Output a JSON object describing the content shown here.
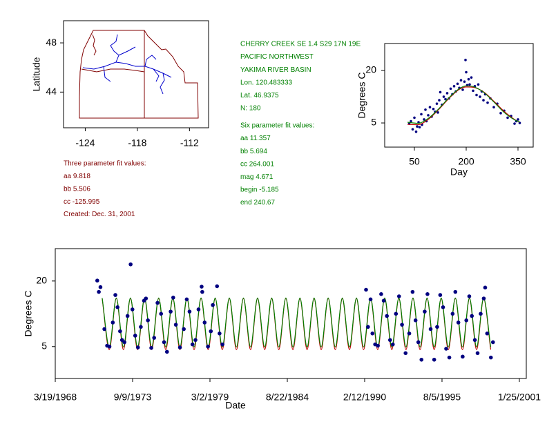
{
  "station": {
    "lines": [
      "CHERRY CREEK SE 1.4 S29 17N 19E",
      "PACIFIC NORTHWEST",
      "YAKIMA RIVER BASIN",
      "Lon. 120.483333",
      "Lat. 46.9375",
      "N: 180"
    ],
    "six_parameter": [
      "Six parameter fit values:",
      "aa 11.357",
      "bb 5.694",
      "cc 264.001",
      "mag 4.671",
      "begin -5.185",
      "end 240.67"
    ]
  },
  "three_parameter": [
    "Three parameter fit values:",
    "aa 9.818",
    "bb 5.506",
    "cc -125.995",
    "Created:   Dec. 31, 2001"
  ],
  "chart_data": [
    {
      "type": "map",
      "y_label": "Latitude",
      "xlim": [
        -126.5,
        -109.8
      ],
      "xticks": [
        -124,
        -118,
        -112
      ],
      "ylim": [
        41.1,
        49.8
      ],
      "yticks": [
        48,
        44
      ]
    },
    {
      "type": "seasonal",
      "x_label": "Day",
      "y_label": "Degrees C",
      "xlim": [
        -36,
        394
      ],
      "xticks": [
        50,
        200,
        350
      ],
      "ylim": [
        -1.9,
        27.7
      ],
      "yticks": [
        20,
        5
      ],
      "series": [
        {
          "type": "scatter",
          "color": "#000080",
          "x": [
            35,
            40,
            45,
            50,
            55,
            58,
            62,
            65,
            70,
            72,
            78,
            82,
            85,
            90,
            95,
            100,
            105,
            110,
            115,
            118,
            122,
            125,
            130,
            135,
            140,
            145,
            150,
            155,
            160,
            165,
            170,
            175,
            180,
            185,
            190,
            195,
            198,
            200,
            203,
            207,
            210,
            215,
            220,
            225,
            230,
            235,
            240,
            245,
            250,
            255,
            262,
            270,
            280,
            290,
            300,
            310,
            320,
            330,
            340,
            345,
            350,
            355
          ],
          "values": [
            4.8,
            5.5,
            3.2,
            6.5,
            2.5,
            4.0,
            5.2,
            3.8,
            7.5,
            4.5,
            6.0,
            8.8,
            5.5,
            7.2,
            9.5,
            6.8,
            9.0,
            8.2,
            10.5,
            8.0,
            11.5,
            13.8,
            10.2,
            12.5,
            11.8,
            13.5,
            12.0,
            14.8,
            13.2,
            15.5,
            14.0,
            16.2,
            15.0,
            17.2,
            14.5,
            16.8,
            23.0,
            19.5,
            15.8,
            17.5,
            16.0,
            18.0,
            14.2,
            15.5,
            13.0,
            16.0,
            12.5,
            14.0,
            11.5,
            13.2,
            10.8,
            12.0,
            9.5,
            10.5,
            7.8,
            8.5,
            6.5,
            7.0,
            4.8,
            5.5,
            6.0,
            5.0
          ]
        },
        {
          "type": "line",
          "color": "#c00000",
          "x": [
            30,
            60,
            90,
            120,
            150,
            180,
            200,
            220,
            250,
            280,
            310,
            340,
            355
          ],
          "values": [
            4.6,
            4.5,
            6.0,
            8.8,
            12.0,
            14.6,
            15.3,
            15.2,
            13.9,
            11.2,
            8.3,
            6.0,
            5.2
          ]
        },
        {
          "type": "line",
          "color": "#008000",
          "x": [
            30,
            60,
            90,
            120,
            150,
            180,
            200,
            220,
            250,
            280,
            310,
            340,
            355
          ],
          "values": [
            5.2,
            4.9,
            6.3,
            9.0,
            12.2,
            14.8,
            15.6,
            15.4,
            13.8,
            11.0,
            8.0,
            5.9,
            5.3
          ]
        }
      ]
    },
    {
      "type": "timeseries",
      "x_label": "Date",
      "y_label": "Degrees C",
      "xlim": [
        "1968-03-19",
        "2001-07-23"
      ],
      "xticks": [
        {
          "value": "1968-03-19",
          "label": "3/19/1968"
        },
        {
          "value": "1973-09-09",
          "label": "9/9/1973"
        },
        {
          "value": "1979-03-02",
          "label": "3/2/1979"
        },
        {
          "value": "1984-08-22",
          "label": "8/22/1984"
        },
        {
          "value": "1990-02-12",
          "label": "2/12/1990"
        },
        {
          "value": "1995-08-05",
          "label": "8/5/1995"
        },
        {
          "value": "2001-01-25",
          "label": "1/25/2001"
        }
      ],
      "ylim": [
        -2.3,
        27.4
      ],
      "yticks": [
        20,
        5
      ],
      "series": [
        {
          "type": "line",
          "color": "#c00000",
          "x": [
            "1971-07-15",
            "1972-01-15",
            "1972-07-15",
            "1973-01-15",
            "1973-07-15",
            "1974-01-15",
            "1974-07-15",
            "1975-01-15",
            "1975-07-15",
            "1976-01-15",
            "1976-07-15",
            "1977-01-15",
            "1977-07-15",
            "1978-01-15",
            "1978-07-15",
            "1979-01-15",
            "1979-07-15",
            "1980-01-15",
            "1980-07-15",
            "1981-01-15",
            "1981-07-15",
            "1982-01-15",
            "1982-07-15",
            "1983-01-15",
            "1983-07-15",
            "1984-01-15",
            "1984-07-15",
            "1985-01-15",
            "1985-07-15",
            "1986-01-15",
            "1986-07-15",
            "1987-01-15",
            "1987-07-15",
            "1988-01-15",
            "1988-07-15",
            "1989-01-15",
            "1989-07-15",
            "1990-01-15",
            "1990-07-15",
            "1991-01-15",
            "1991-07-15",
            "1992-01-15",
            "1992-07-15",
            "1993-01-15",
            "1993-07-15",
            "1994-01-15",
            "1994-07-15",
            "1995-01-15",
            "1995-07-15",
            "1996-01-15",
            "1996-07-15",
            "1997-01-15",
            "1997-07-15",
            "1998-01-15",
            "1998-07-15",
            "1999-01-15"
          ],
          "values": [
            16.0,
            4.3,
            16.0,
            4.3,
            16.0,
            4.3,
            16.0,
            4.3,
            16.0,
            4.3,
            16.0,
            4.3,
            16.0,
            4.3,
            16.0,
            4.3,
            16.0,
            4.3,
            16.0,
            4.3,
            16.0,
            4.3,
            16.0,
            4.3,
            16.0,
            4.3,
            16.0,
            4.3,
            16.0,
            4.3,
            16.0,
            4.3,
            16.0,
            4.3,
            16.0,
            4.3,
            16.0,
            4.3,
            16.0,
            4.3,
            16.0,
            4.3,
            16.0,
            4.3,
            16.0,
            4.3,
            16.0,
            4.3,
            16.0,
            4.3,
            16.0,
            4.3,
            16.0,
            4.3,
            16.0,
            4.3
          ]
        },
        {
          "type": "line",
          "color": "#008000",
          "x": [
            "1971-07-15",
            "1972-01-15",
            "1972-07-15",
            "1973-01-15",
            "1973-07-15",
            "1974-01-15",
            "1974-07-15",
            "1975-01-15",
            "1975-07-15",
            "1976-01-15",
            "1976-07-15",
            "1977-01-15",
            "1977-07-15",
            "1978-01-15",
            "1978-07-15",
            "1979-01-15",
            "1979-07-15",
            "1980-01-15",
            "1980-07-15",
            "1981-01-15",
            "1981-07-15",
            "1982-01-15",
            "1982-07-15",
            "1983-01-15",
            "1983-07-15",
            "1984-01-15",
            "1984-07-15",
            "1985-01-15",
            "1985-07-15",
            "1986-01-15",
            "1986-07-15",
            "1987-01-15",
            "1987-07-15",
            "1988-01-15",
            "1988-07-15",
            "1989-01-15",
            "1989-07-15",
            "1990-01-15",
            "1990-07-15",
            "1991-01-15",
            "1991-07-15",
            "1992-01-15",
            "1992-07-15",
            "1993-01-15",
            "1993-07-15",
            "1994-01-15",
            "1994-07-15",
            "1995-01-15",
            "1995-07-15",
            "1996-01-15",
            "1996-07-15",
            "1997-01-15",
            "1997-07-15",
            "1998-01-15",
            "1998-07-15",
            "1999-01-15"
          ],
          "values": [
            16.1,
            4.9,
            16.1,
            4.9,
            16.1,
            4.9,
            16.1,
            4.9,
            16.1,
            4.9,
            16.1,
            4.9,
            16.1,
            4.9,
            16.1,
            4.9,
            16.1,
            4.9,
            16.1,
            4.9,
            16.1,
            4.9,
            16.1,
            4.9,
            16.1,
            4.9,
            16.1,
            4.9,
            16.1,
            4.9,
            16.1,
            4.9,
            16.1,
            4.9,
            16.1,
            4.9,
            16.1,
            4.9,
            16.1,
            4.9,
            16.1,
            4.9,
            16.1,
            4.9,
            16.1,
            4.9,
            16.1,
            4.9,
            16.1,
            4.9,
            16.1,
            4.9,
            16.1,
            4.9,
            16.1,
            4.9
          ]
        },
        {
          "type": "scatter",
          "color": "#000080",
          "x": [
            "1971-03-10",
            "1971-04-20",
            "1971-06-01",
            "1971-09-10",
            "1971-11-20",
            "1972-01-20",
            "1972-04-15",
            "1972-06-20",
            "1972-08-15",
            "1972-10-20",
            "1972-12-10",
            "1973-02-10",
            "1973-05-01",
            "1973-07-20",
            "1973-09-05",
            "1973-11-15",
            "1974-01-25",
            "1974-04-10",
            "1974-07-01",
            "1974-08-20",
            "1974-10-10",
            "1975-01-05",
            "1975-03-20",
            "1975-06-15",
            "1975-09-15",
            "1975-12-01",
            "1976-02-15",
            "1976-05-20",
            "1976-07-25",
            "1976-10-01",
            "1977-01-15",
            "1977-04-25",
            "1977-07-10",
            "1977-09-20",
            "1977-12-05",
            "1978-02-20",
            "1978-05-10",
            "1978-07-30",
            "1978-08-15",
            "1978-10-15",
            "1979-01-10",
            "1979-03-25",
            "1979-05-15",
            "1979-09-01",
            "1979-11-05",
            "1980-01-20",
            "1990-03-20",
            "1990-05-10",
            "1990-07-15",
            "1990-09-01",
            "1990-11-10",
            "1991-01-20",
            "1991-04-15",
            "1991-06-20",
            "1991-09-10",
            "1991-12-01",
            "1992-02-10",
            "1992-05-01",
            "1992-07-20",
            "1992-10-05",
            "1993-01-05",
            "1993-04-10",
            "1993-07-05",
            "1993-09-20",
            "1993-12-01",
            "1994-02-20",
            "1994-05-15",
            "1994-07-25",
            "1994-10-15",
            "1995-01-15",
            "1995-04-01",
            "1995-06-20",
            "1995-09-01",
            "1995-11-20",
            "1996-02-10",
            "1996-05-05",
            "1996-07-15",
            "1996-10-01",
            "1997-01-20",
            "1997-04-25",
            "1997-07-10",
            "1997-09-15",
            "1997-12-01",
            "1998-02-10",
            "1998-05-01",
            "1998-07-20",
            "1998-08-25",
            "1998-10-15",
            "1999-01-20",
            "1999-03-15"
          ],
          "values": [
            20.1,
            17.5,
            18.6,
            9.0,
            5.2,
            5.0,
            10.5,
            16.8,
            14.0,
            8.5,
            6.5,
            6.0,
            12.0,
            23.8,
            13.5,
            7.5,
            4.8,
            9.5,
            15.5,
            16.0,
            11.0,
            4.7,
            7.0,
            15.0,
            12.5,
            6.0,
            3.8,
            13.0,
            16.2,
            10.0,
            4.8,
            9.0,
            15.8,
            13.0,
            5.5,
            6.5,
            13.5,
            18.7,
            17.5,
            10.5,
            5.0,
            8.5,
            14.5,
            18.8,
            8.0,
            5.5,
            18.0,
            9.5,
            15.8,
            8.0,
            5.5,
            5.2,
            17.0,
            15.5,
            12.0,
            6.5,
            5.5,
            12.5,
            16.5,
            10.0,
            3.5,
            8.0,
            17.5,
            11.0,
            6.0,
            2.0,
            13.0,
            17.0,
            9.0,
            2.0,
            9.5,
            16.8,
            14.0,
            4.5,
            2.5,
            12.5,
            17.5,
            10.5,
            2.7,
            11.0,
            16.5,
            12.0,
            6.5,
            3.5,
            12.5,
            16.0,
            18.5,
            8.0,
            2.5,
            6.0
          ]
        }
      ]
    }
  ]
}
